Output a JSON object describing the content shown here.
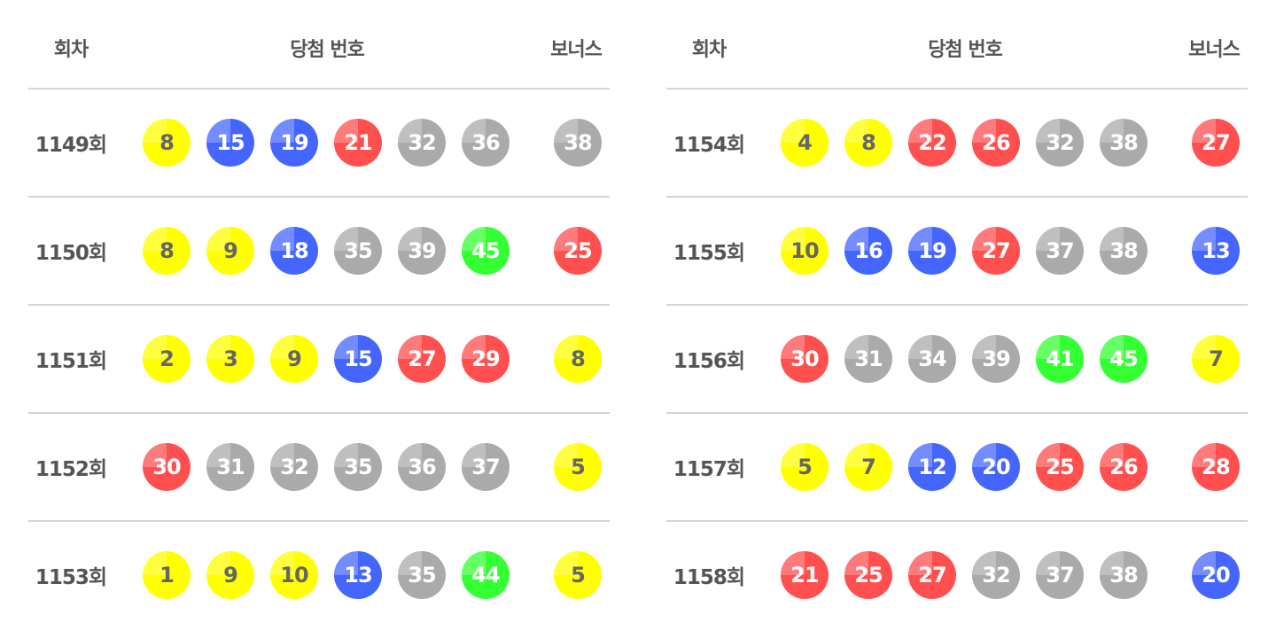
{
  "headers": {
    "round": "회차",
    "numbers": "당첨 번호",
    "bonus": "보너스"
  },
  "colors": {
    "yellow": "#ffff00",
    "blue": "#4466ff",
    "red": "#ff4f4f",
    "gray": "#aaaaaa",
    "green": "#33ff33",
    "yellow_text": "#666666"
  },
  "tables": [
    {
      "rows": [
        {
          "round": "1149회",
          "numbers": [
            8,
            15,
            19,
            21,
            32,
            36
          ],
          "bonus": 38
        },
        {
          "round": "1150회",
          "numbers": [
            8,
            9,
            18,
            35,
            39,
            45
          ],
          "bonus": 25
        },
        {
          "round": "1151회",
          "numbers": [
            2,
            3,
            9,
            15,
            27,
            29
          ],
          "bonus": 8
        },
        {
          "round": "1152회",
          "numbers": [
            30,
            31,
            32,
            35,
            36,
            37
          ],
          "bonus": 5
        },
        {
          "round": "1153회",
          "numbers": [
            1,
            9,
            10,
            13,
            35,
            44
          ],
          "bonus": 5
        }
      ]
    },
    {
      "rows": [
        {
          "round": "1154회",
          "numbers": [
            4,
            8,
            22,
            26,
            32,
            38
          ],
          "bonus": 27
        },
        {
          "round": "1155회",
          "numbers": [
            10,
            16,
            19,
            27,
            37,
            38
          ],
          "bonus": 13
        },
        {
          "round": "1156회",
          "numbers": [
            30,
            31,
            34,
            39,
            41,
            45
          ],
          "bonus": 7
        },
        {
          "round": "1157회",
          "numbers": [
            5,
            7,
            12,
            20,
            25,
            26
          ],
          "bonus": 28
        },
        {
          "round": "1158회",
          "numbers": [
            21,
            25,
            27,
            32,
            37,
            38
          ],
          "bonus": 20
        }
      ]
    }
  ]
}
